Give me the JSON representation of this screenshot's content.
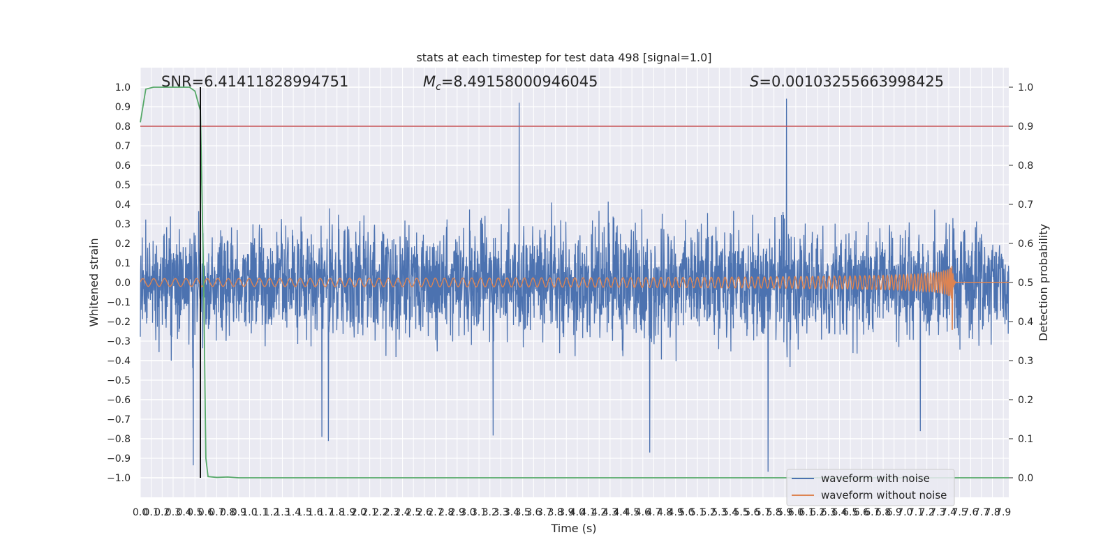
{
  "chart_data": {
    "type": "line",
    "title": "stats at each timestep for test data 498 [signal=1.0]",
    "xlabel": "Time (s)",
    "ylabel": "Whitened strain",
    "y2label": "Detection probability",
    "xlim": [
      0.0,
      7.95
    ],
    "ylim": [
      -1.1,
      1.1
    ],
    "y2lim": [
      -0.05,
      1.05
    ],
    "x_ticks": [
      "0.0",
      "0.1",
      "0.2",
      "0.3",
      "0.4",
      "0.5",
      "0.6",
      "0.7",
      "0.8",
      "0.9",
      "1.0",
      "1.1",
      "1.2",
      "1.3",
      "1.4",
      "1.5",
      "1.6",
      "1.7",
      "1.8",
      "1.9",
      "2.0",
      "2.1",
      "2.2",
      "2.3",
      "2.4",
      "2.5",
      "2.6",
      "2.7",
      "2.8",
      "2.9",
      "3.0",
      "3.1",
      "3.2",
      "3.3",
      "3.4",
      "3.5",
      "3.6",
      "3.7",
      "3.8",
      "3.9",
      "4.0",
      "4.1",
      "4.2",
      "4.3",
      "4.4",
      "4.5",
      "4.6",
      "4.7",
      "4.8",
      "4.9",
      "5.0",
      "5.1",
      "5.2",
      "5.3",
      "5.4",
      "5.5",
      "5.6",
      "5.7",
      "5.8",
      "5.9",
      "6.0",
      "6.1",
      "6.2",
      "6.3",
      "6.4",
      "6.5",
      "6.6",
      "6.7",
      "6.8",
      "6.9",
      "7.0",
      "7.1",
      "7.2",
      "7.3",
      "7.4",
      "7.5",
      "7.6",
      "7.7",
      "7.8",
      "7.9"
    ],
    "y_ticks": [
      "1.0",
      "0.9",
      "0.8",
      "0.7",
      "0.6",
      "0.5",
      "0.4",
      "0.3",
      "0.2",
      "0.1",
      "0.0",
      "−0.1",
      "−0.2",
      "−0.3",
      "−0.4",
      "−0.5",
      "−0.6",
      "−0.7",
      "−0.8",
      "−0.9",
      "−1.0"
    ],
    "y2_ticks": [
      "1.0",
      "0.9",
      "0.8",
      "0.7",
      "0.6",
      "0.5",
      "0.4",
      "0.3",
      "0.2",
      "0.1",
      "0.0"
    ],
    "annotations": {
      "snr": "SNR=6.41411828994751",
      "mc_symbol": "M",
      "mc_sub": "c",
      "mc_value": "=8.49158000946045",
      "s_symbol": "S",
      "s_value": "=0.00103255663998425"
    },
    "threshold": 0.9,
    "merger_marker_x": 0.55,
    "series": [
      {
        "name": "waveform with noise",
        "color": "#4c72b0",
        "axis": "left",
        "noise_envelope": 0.6,
        "spike_max": 0.97
      },
      {
        "name": "waveform without noise",
        "color": "#dd8452",
        "axis": "left",
        "chirp_start_amplitude": 0.02,
        "chirp_peak": 0.17,
        "chirp_min": -0.24,
        "merger_time": 7.43
      },
      {
        "color": "#55a868",
        "axis": "right",
        "x": [
          0.0,
          0.05,
          0.12,
          0.3,
          0.45,
          0.5,
          0.55,
          0.58,
          0.6,
          0.62,
          0.7,
          0.8,
          0.9,
          7.95
        ],
        "y": [
          0.91,
          0.995,
          1.0,
          1.0,
          1.0,
          0.99,
          0.94,
          0.5,
          0.05,
          0.003,
          0.001,
          0.002,
          0.0,
          0.0
        ]
      }
    ],
    "threshold_color": "#c44e52",
    "marker_color": "#000000",
    "legend": {
      "location": "lower-right",
      "entries": [
        "waveform with noise",
        "waveform without noise"
      ]
    },
    "grid": true
  }
}
